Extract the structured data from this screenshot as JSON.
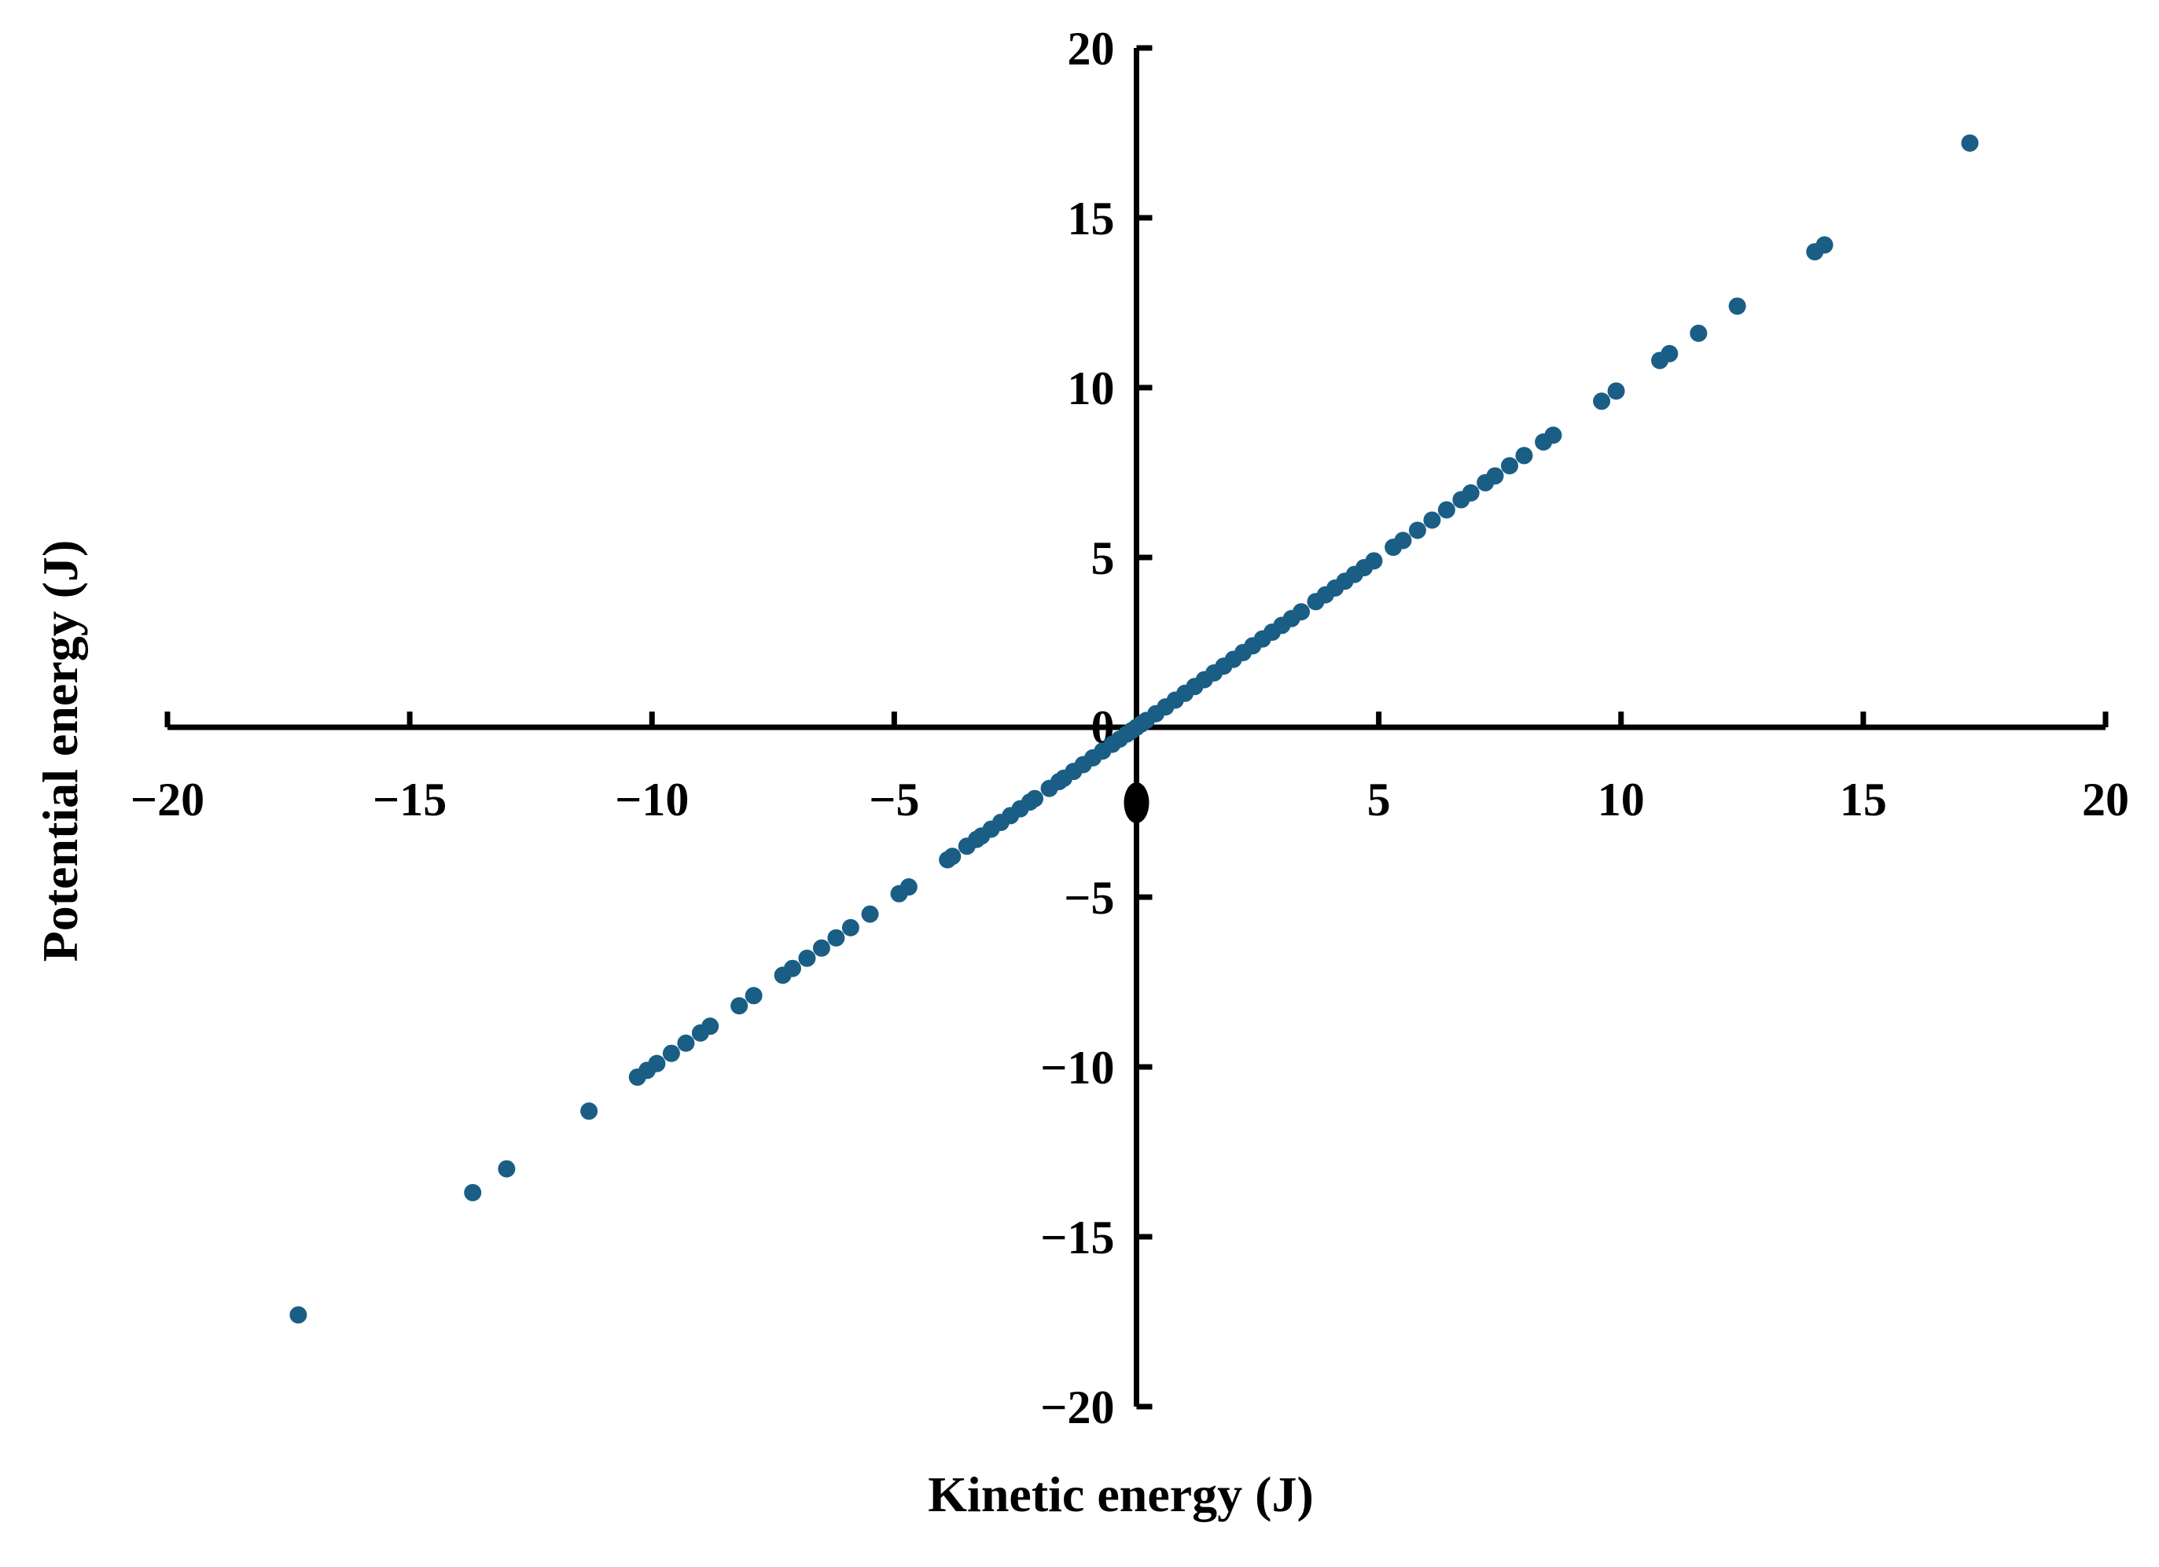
{
  "chart_data": {
    "type": "scatter",
    "title": "",
    "xlabel": "Kinetic energy (J)",
    "ylabel": "Potential energy (J)",
    "xlim": [
      -20,
      20
    ],
    "ylim": [
      -20,
      20
    ],
    "x_ticks": [
      -20,
      -15,
      -10,
      -5,
      5,
      10,
      15,
      20
    ],
    "x_tick_labels": [
      "−20",
      "−15",
      "−10",
      "−5",
      "5",
      "10",
      "15",
      "20"
    ],
    "y_ticks": [
      -20,
      -15,
      -10,
      -5,
      0,
      5,
      10,
      15,
      20
    ],
    "y_tick_labels": [
      "−20",
      "−15",
      "−10",
      "−5",
      "0",
      "5",
      "10",
      "15",
      "20"
    ],
    "grid": false,
    "legend": "none",
    "colors": {
      "marker": "#1a5e85",
      "axis": "#000000"
    },
    "series": [
      {
        "x": [
          -17.3,
          -13.7,
          -13.0,
          -11.3,
          -10.3,
          -10.1,
          -9.9,
          -9.6,
          -9.3,
          -9.0,
          -8.8,
          -8.2,
          -7.9,
          -7.3,
          -7.1,
          -6.8,
          -6.5,
          -6.2,
          -5.9,
          -5.5,
          -4.9,
          -4.7,
          -3.9,
          -3.8,
          -3.5,
          -3.3,
          -3.2,
          -3.0,
          -2.8,
          -2.6,
          -2.4,
          -2.2,
          -2.1,
          -1.8,
          -1.6,
          -1.5,
          -1.3,
          -1.1,
          -0.9,
          -0.7,
          -0.5,
          -0.35,
          -0.2,
          -0.1,
          0.0,
          0.1,
          0.2,
          0.4,
          0.6,
          0.8,
          1.0,
          1.2,
          1.4,
          1.6,
          1.8,
          2.0,
          2.2,
          2.4,
          2.6,
          2.8,
          3.0,
          3.2,
          3.4,
          3.7,
          3.9,
          4.1,
          4.3,
          4.5,
          4.7,
          4.9,
          5.3,
          5.5,
          5.8,
          6.1,
          6.4,
          6.7,
          6.9,
          7.2,
          7.4,
          7.7,
          8.0,
          8.4,
          8.6,
          9.6,
          9.9,
          10.8,
          11.0,
          11.6,
          12.4,
          14.0,
          14.2,
          17.2
        ],
        "y": [
          -17.3,
          -13.7,
          -13.0,
          -11.3,
          -10.3,
          -10.1,
          -9.9,
          -9.6,
          -9.3,
          -9.0,
          -8.8,
          -8.2,
          -7.9,
          -7.3,
          -7.1,
          -6.8,
          -6.5,
          -6.2,
          -5.9,
          -5.5,
          -4.9,
          -4.7,
          -3.9,
          -3.8,
          -3.5,
          -3.3,
          -3.2,
          -3.0,
          -2.8,
          -2.6,
          -2.4,
          -2.2,
          -2.1,
          -1.8,
          -1.6,
          -1.5,
          -1.3,
          -1.1,
          -0.9,
          -0.7,
          -0.5,
          -0.35,
          -0.2,
          -0.1,
          0.0,
          0.1,
          0.2,
          0.4,
          0.6,
          0.8,
          1.0,
          1.2,
          1.4,
          1.6,
          1.8,
          2.0,
          2.2,
          2.4,
          2.6,
          2.8,
          3.0,
          3.2,
          3.4,
          3.7,
          3.9,
          4.1,
          4.3,
          4.5,
          4.7,
          4.9,
          5.3,
          5.5,
          5.8,
          6.1,
          6.4,
          6.7,
          6.9,
          7.2,
          7.4,
          7.7,
          8.0,
          8.4,
          8.6,
          9.6,
          9.9,
          10.8,
          11.0,
          11.6,
          12.4,
          14.0,
          14.2,
          17.2
        ]
      }
    ]
  }
}
